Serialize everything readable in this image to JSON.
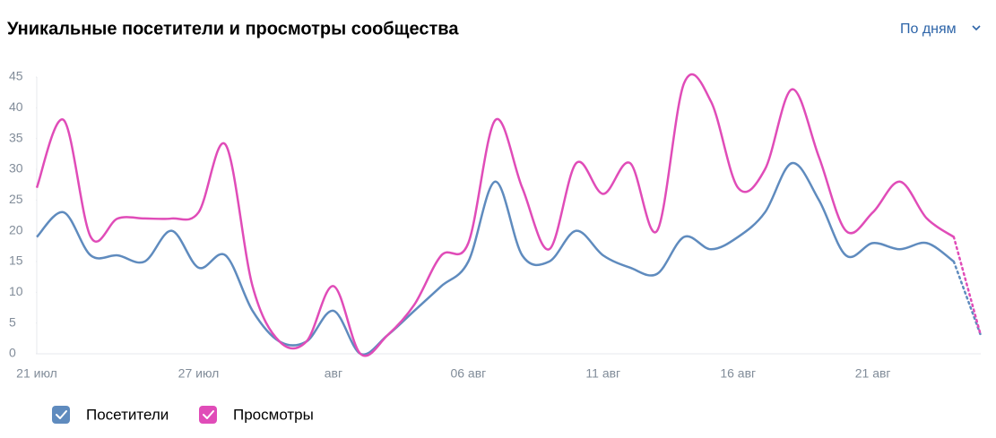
{
  "header": {
    "title": "Уникальные посетители и просмотры сообщества",
    "period": "По дням"
  },
  "chart_data": {
    "type": "line",
    "categories": [
      "21 июл",
      null,
      null,
      null,
      null,
      null,
      "27 июл",
      null,
      null,
      null,
      null,
      "авг",
      null,
      null,
      null,
      null,
      "06 авг",
      null,
      null,
      null,
      null,
      "11 авг",
      null,
      null,
      null,
      null,
      "16 авг",
      null,
      null,
      null,
      null,
      "21 авг",
      null,
      null,
      null,
      null
    ],
    "series": [
      {
        "name": "Посетители",
        "color": "#5f8bbe",
        "values": [
          19,
          23,
          16,
          16,
          15,
          20,
          14,
          16,
          7,
          2,
          2,
          7,
          0,
          3,
          7,
          11,
          15,
          28,
          16,
          15,
          20,
          16,
          14,
          13,
          19,
          17,
          19,
          23,
          31,
          25,
          16,
          18,
          17,
          18,
          15,
          3
        ]
      },
      {
        "name": "Просмотры",
        "color": "#e04cb8",
        "values": [
          27,
          38,
          19,
          22,
          22,
          22,
          23,
          34,
          11,
          2,
          2,
          11,
          0,
          3,
          8,
          16,
          18,
          38,
          27,
          17,
          31,
          26,
          31,
          20,
          44,
          41,
          27,
          30,
          43,
          32,
          20,
          23,
          28,
          22,
          19,
          3
        ]
      }
    ],
    "ylim": [
      0,
      45
    ],
    "yticks": [
      0,
      5,
      10,
      15,
      20,
      25,
      30,
      35,
      40,
      45
    ],
    "grid": false
  }
}
